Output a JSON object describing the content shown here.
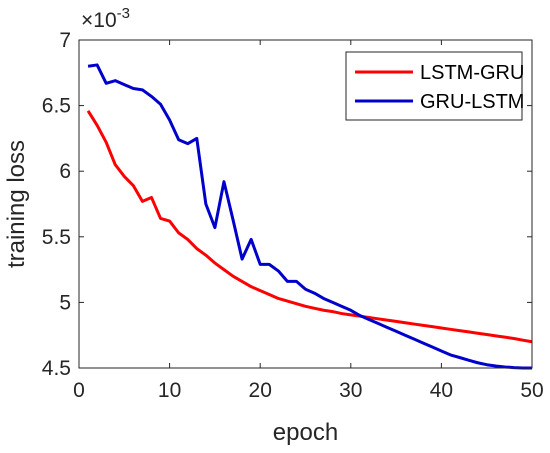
{
  "chart_data": {
    "type": "line",
    "xlabel": "epoch",
    "ylabel": "training loss",
    "y_multiplier_base": "×10",
    "y_multiplier_exp": "-3",
    "xlim": [
      0,
      50
    ],
    "ylim": [
      4.5,
      7
    ],
    "xticks": [
      0,
      10,
      20,
      30,
      40,
      50
    ],
    "yticks": [
      4.5,
      5,
      5.5,
      6,
      6.5,
      7
    ],
    "ytick_labels": [
      "4.5",
      "5",
      "5.5",
      "6",
      "6.5",
      "7"
    ],
    "grid": false,
    "legend_position": "top-right",
    "series": [
      {
        "name": "LSTM-GRU",
        "color": "#ff0000",
        "x": [
          1,
          2,
          3,
          4,
          5,
          6,
          7,
          8,
          9,
          10,
          11,
          12,
          13,
          14,
          15,
          16,
          17,
          18,
          19,
          20,
          21,
          22,
          23,
          24,
          25,
          26,
          27,
          28,
          29,
          30,
          31,
          32,
          33,
          34,
          35,
          36,
          37,
          38,
          39,
          40,
          41,
          42,
          43,
          44,
          45,
          46,
          47,
          48,
          49,
          50
        ],
        "y": [
          6.46,
          6.35,
          6.22,
          6.05,
          5.96,
          5.89,
          5.77,
          5.8,
          5.64,
          5.62,
          5.53,
          5.48,
          5.41,
          5.36,
          5.3,
          5.25,
          5.2,
          5.16,
          5.12,
          5.09,
          5.06,
          5.03,
          5.01,
          4.99,
          4.97,
          4.955,
          4.94,
          4.93,
          4.915,
          4.905,
          4.895,
          4.885,
          4.875,
          4.865,
          4.855,
          4.845,
          4.835,
          4.825,
          4.815,
          4.805,
          4.795,
          4.785,
          4.775,
          4.765,
          4.755,
          4.745,
          4.735,
          4.725,
          4.712,
          4.7
        ]
      },
      {
        "name": "GRU-LSTM",
        "color": "#0000cc",
        "x": [
          1,
          2,
          3,
          4,
          5,
          6,
          7,
          8,
          9,
          10,
          11,
          12,
          13,
          14,
          15,
          16,
          17,
          18,
          19,
          20,
          21,
          22,
          23,
          24,
          25,
          26,
          27,
          28,
          29,
          30,
          31,
          32,
          33,
          34,
          35,
          36,
          37,
          38,
          39,
          40,
          41,
          42,
          43,
          44,
          45,
          46,
          47,
          48,
          49,
          50
        ],
        "y": [
          6.8,
          6.81,
          6.67,
          6.69,
          6.66,
          6.63,
          6.62,
          6.57,
          6.51,
          6.39,
          6.24,
          6.21,
          6.25,
          5.75,
          5.57,
          5.92,
          5.63,
          5.33,
          5.48,
          5.29,
          5.29,
          5.24,
          5.16,
          5.16,
          5.1,
          5.07,
          5.03,
          5.0,
          4.97,
          4.94,
          4.9,
          4.87,
          4.84,
          4.81,
          4.78,
          4.75,
          4.72,
          4.69,
          4.66,
          4.63,
          4.6,
          4.58,
          4.56,
          4.54,
          4.525,
          4.515,
          4.508,
          4.503,
          4.5,
          4.5
        ]
      }
    ]
  }
}
